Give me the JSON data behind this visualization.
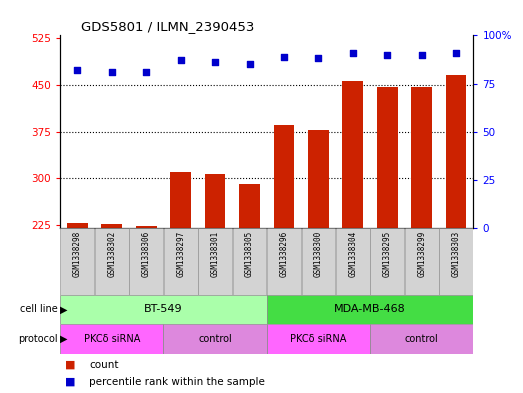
{
  "title": "GDS5801 / ILMN_2390453",
  "samples": [
    "GSM1338298",
    "GSM1338302",
    "GSM1338306",
    "GSM1338297",
    "GSM1338301",
    "GSM1338305",
    "GSM1338296",
    "GSM1338300",
    "GSM1338304",
    "GSM1338295",
    "GSM1338299",
    "GSM1338303"
  ],
  "counts": [
    228,
    226,
    223,
    310,
    307,
    291,
    385,
    377,
    457,
    447,
    447,
    466
  ],
  "percentiles": [
    82,
    81,
    81,
    87,
    86,
    85,
    89,
    88,
    91,
    90,
    90,
    91
  ],
  "ylim_left": [
    220,
    530
  ],
  "ylim_right": [
    0,
    100
  ],
  "yticks_left": [
    225,
    300,
    375,
    450,
    525
  ],
  "yticks_right": [
    0,
    25,
    50,
    75,
    100
  ],
  "right_tick_labels": [
    "0",
    "25",
    "50",
    "75",
    "100%"
  ],
  "bar_color": "#CC2200",
  "dot_color": "#0000CC",
  "sample_bg_color": "#D3D3D3",
  "cell_line_colors": [
    "#AAFFAA",
    "#44DD44"
  ],
  "cell_line_groups": [
    {
      "label": "BT-549",
      "start": 0,
      "end": 6
    },
    {
      "label": "MDA-MB-468",
      "start": 6,
      "end": 12
    }
  ],
  "protocol_colors": [
    "#FF66FF",
    "#DD88DD",
    "#FF66FF",
    "#DD88DD"
  ],
  "protocol_groups": [
    {
      "label": "PKCδ siRNA",
      "start": 0,
      "end": 3
    },
    {
      "label": "control",
      "start": 3,
      "end": 6
    },
    {
      "label": "PKCδ siRNA",
      "start": 6,
      "end": 9
    },
    {
      "label": "control",
      "start": 9,
      "end": 12
    }
  ]
}
